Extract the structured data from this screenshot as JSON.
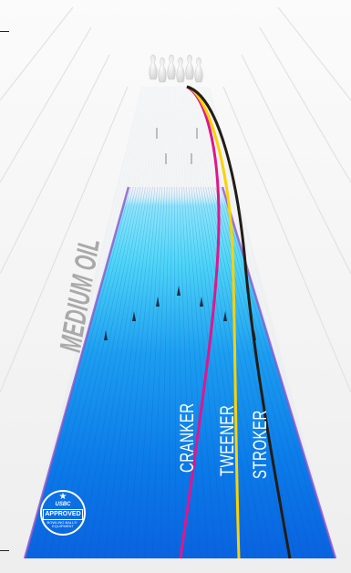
{
  "colors": {
    "cranker": "#e0168c",
    "tweener": "#fcd200",
    "stroker": "#221d16",
    "oil_deep": "#0b6fe6",
    "oil_light": "#4fd6f6",
    "lane_edge": "#8a54d0"
  },
  "labels": {
    "oil_pattern": "MEDIUM OIL",
    "cranker": "CRANKER",
    "tweener": "TWEENER",
    "stroker": "STROKER"
  },
  "badge": {
    "icon": "star-icon",
    "org": "USBC",
    "stamp": "APPROVED",
    "sub": "BOWLING BALLS · EQUIPMENT"
  }
}
